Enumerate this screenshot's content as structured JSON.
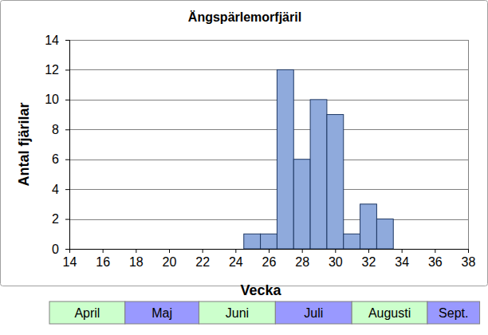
{
  "chart_data": {
    "type": "histogram",
    "title": "Ängspärlemorfjäril",
    "x_label": "Vecka",
    "y_label": "Antal fjärilar",
    "bins": [
      24.5,
      25.5,
      26.5,
      27.5,
      28.5,
      29.5,
      30.5,
      31.5,
      32.5,
      33.5
    ],
    "counts": [
      1,
      1,
      12,
      6,
      10,
      9,
      1,
      3,
      2
    ],
    "color": "#8faadc",
    "xlim": [
      14,
      38
    ],
    "xticks": [
      14,
      16,
      18,
      20,
      22,
      24,
      26,
      28,
      30,
      32,
      34,
      36,
      38
    ],
    "ylim": [
      0,
      14
    ],
    "yticks": [
      0,
      2,
      4,
      6,
      8,
      10,
      12,
      14
    ],
    "grid": true,
    "months": {
      "labels": [
        "April",
        "Maj",
        "Juni",
        "Juli",
        "Augusti",
        "Sept."
      ],
      "edges": [
        12.8,
        17.35,
        21.8,
        26.4,
        31.0,
        35.55,
        38.7
      ],
      "colors": [
        "#ccffcc",
        "#9999ff",
        "#ccffcc",
        "#9999ff",
        "#ccffcc",
        "#9999ff"
      ]
    }
  }
}
